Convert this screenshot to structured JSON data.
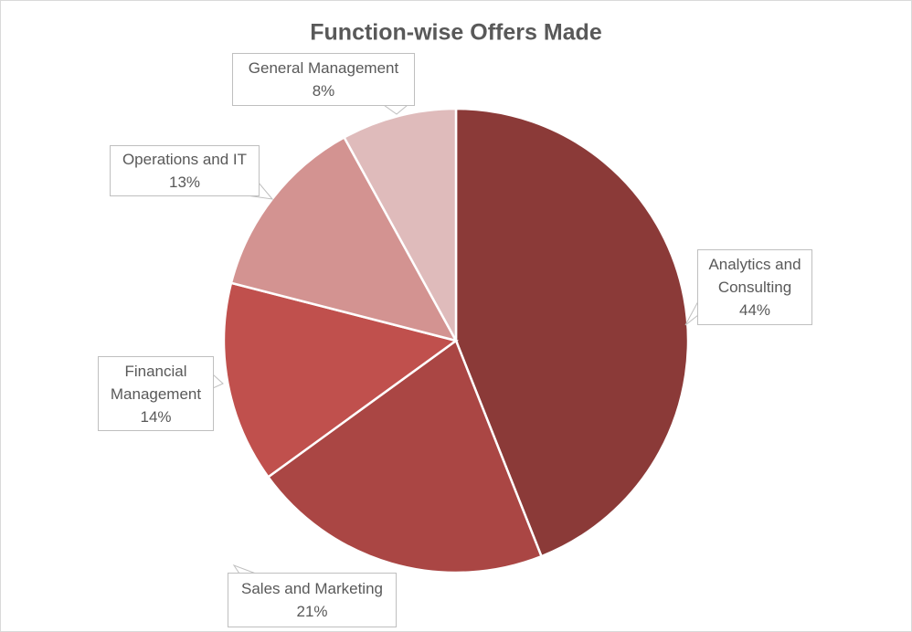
{
  "chart_data": {
    "type": "pie",
    "title": "Function-wise Offers Made",
    "categories": [
      "Analytics and Consulting",
      "Sales and Marketing",
      "Financial Management",
      "Operations and IT",
      "General Management"
    ],
    "values": [
      44,
      21,
      14,
      13,
      8
    ],
    "value_labels": [
      "44%",
      "21%",
      "14%",
      "13%",
      "8%"
    ],
    "colors": [
      "#8b3a38",
      "#aa4644",
      "#c0504d",
      "#d39391",
      "#dfbbbb"
    ]
  }
}
